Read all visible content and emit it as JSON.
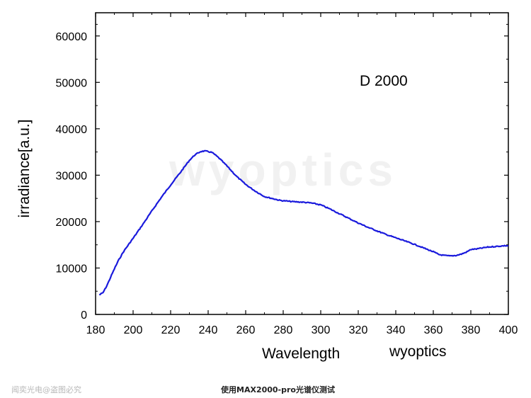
{
  "chart_data": {
    "type": "line",
    "title": "",
    "annotation": "D 2000",
    "xlabel": "Wavelength",
    "ylabel": "irradiance[a.u.]",
    "xlim": [
      180,
      400
    ],
    "ylim": [
      0,
      65000
    ],
    "x_ticks": [
      180,
      200,
      220,
      240,
      260,
      280,
      300,
      320,
      340,
      360,
      380,
      400
    ],
    "y_ticks": [
      0,
      10000,
      20000,
      30000,
      40000,
      50000,
      60000
    ],
    "grid": false,
    "line_color": "#1a1adc",
    "series": [
      {
        "x": [
          182,
          184,
          186,
          188,
          190,
          192,
          195,
          198,
          200,
          205,
          210,
          215,
          220,
          225,
          230,
          233,
          236,
          238,
          240,
          242,
          244,
          246,
          248,
          250,
          255,
          260,
          265,
          270,
          272,
          275,
          278,
          280,
          285,
          290,
          295,
          300,
          305,
          310,
          315,
          320,
          325,
          330,
          335,
          340,
          345,
          350,
          355,
          360,
          363,
          366,
          369,
          372,
          375,
          378,
          380,
          383,
          386,
          389,
          392,
          395,
          398,
          400
        ],
        "values": [
          4200,
          4700,
          6200,
          8000,
          9800,
          11500,
          13600,
          15300,
          16400,
          19300,
          22300,
          25200,
          27900,
          30500,
          33200,
          34400,
          35100,
          35200,
          35100,
          34900,
          34300,
          33600,
          32800,
          32000,
          29800,
          28000,
          26600,
          25400,
          25200,
          24900,
          24600,
          24500,
          24300,
          24200,
          24000,
          23600,
          22700,
          21700,
          20700,
          19700,
          18800,
          18000,
          17200,
          16500,
          15800,
          15100,
          14300,
          13500,
          12900,
          12700,
          12600,
          12700,
          13000,
          13500,
          14000,
          14100,
          14300,
          14500,
          14600,
          14700,
          14800,
          14800
        ]
      }
    ]
  },
  "watermark": "wyoptics",
  "label_wyoptics": "wyoptics",
  "footer": {
    "left": "闻奕光电@盗图必究",
    "center": "使用MAX2000-pro光谱仪测试"
  }
}
